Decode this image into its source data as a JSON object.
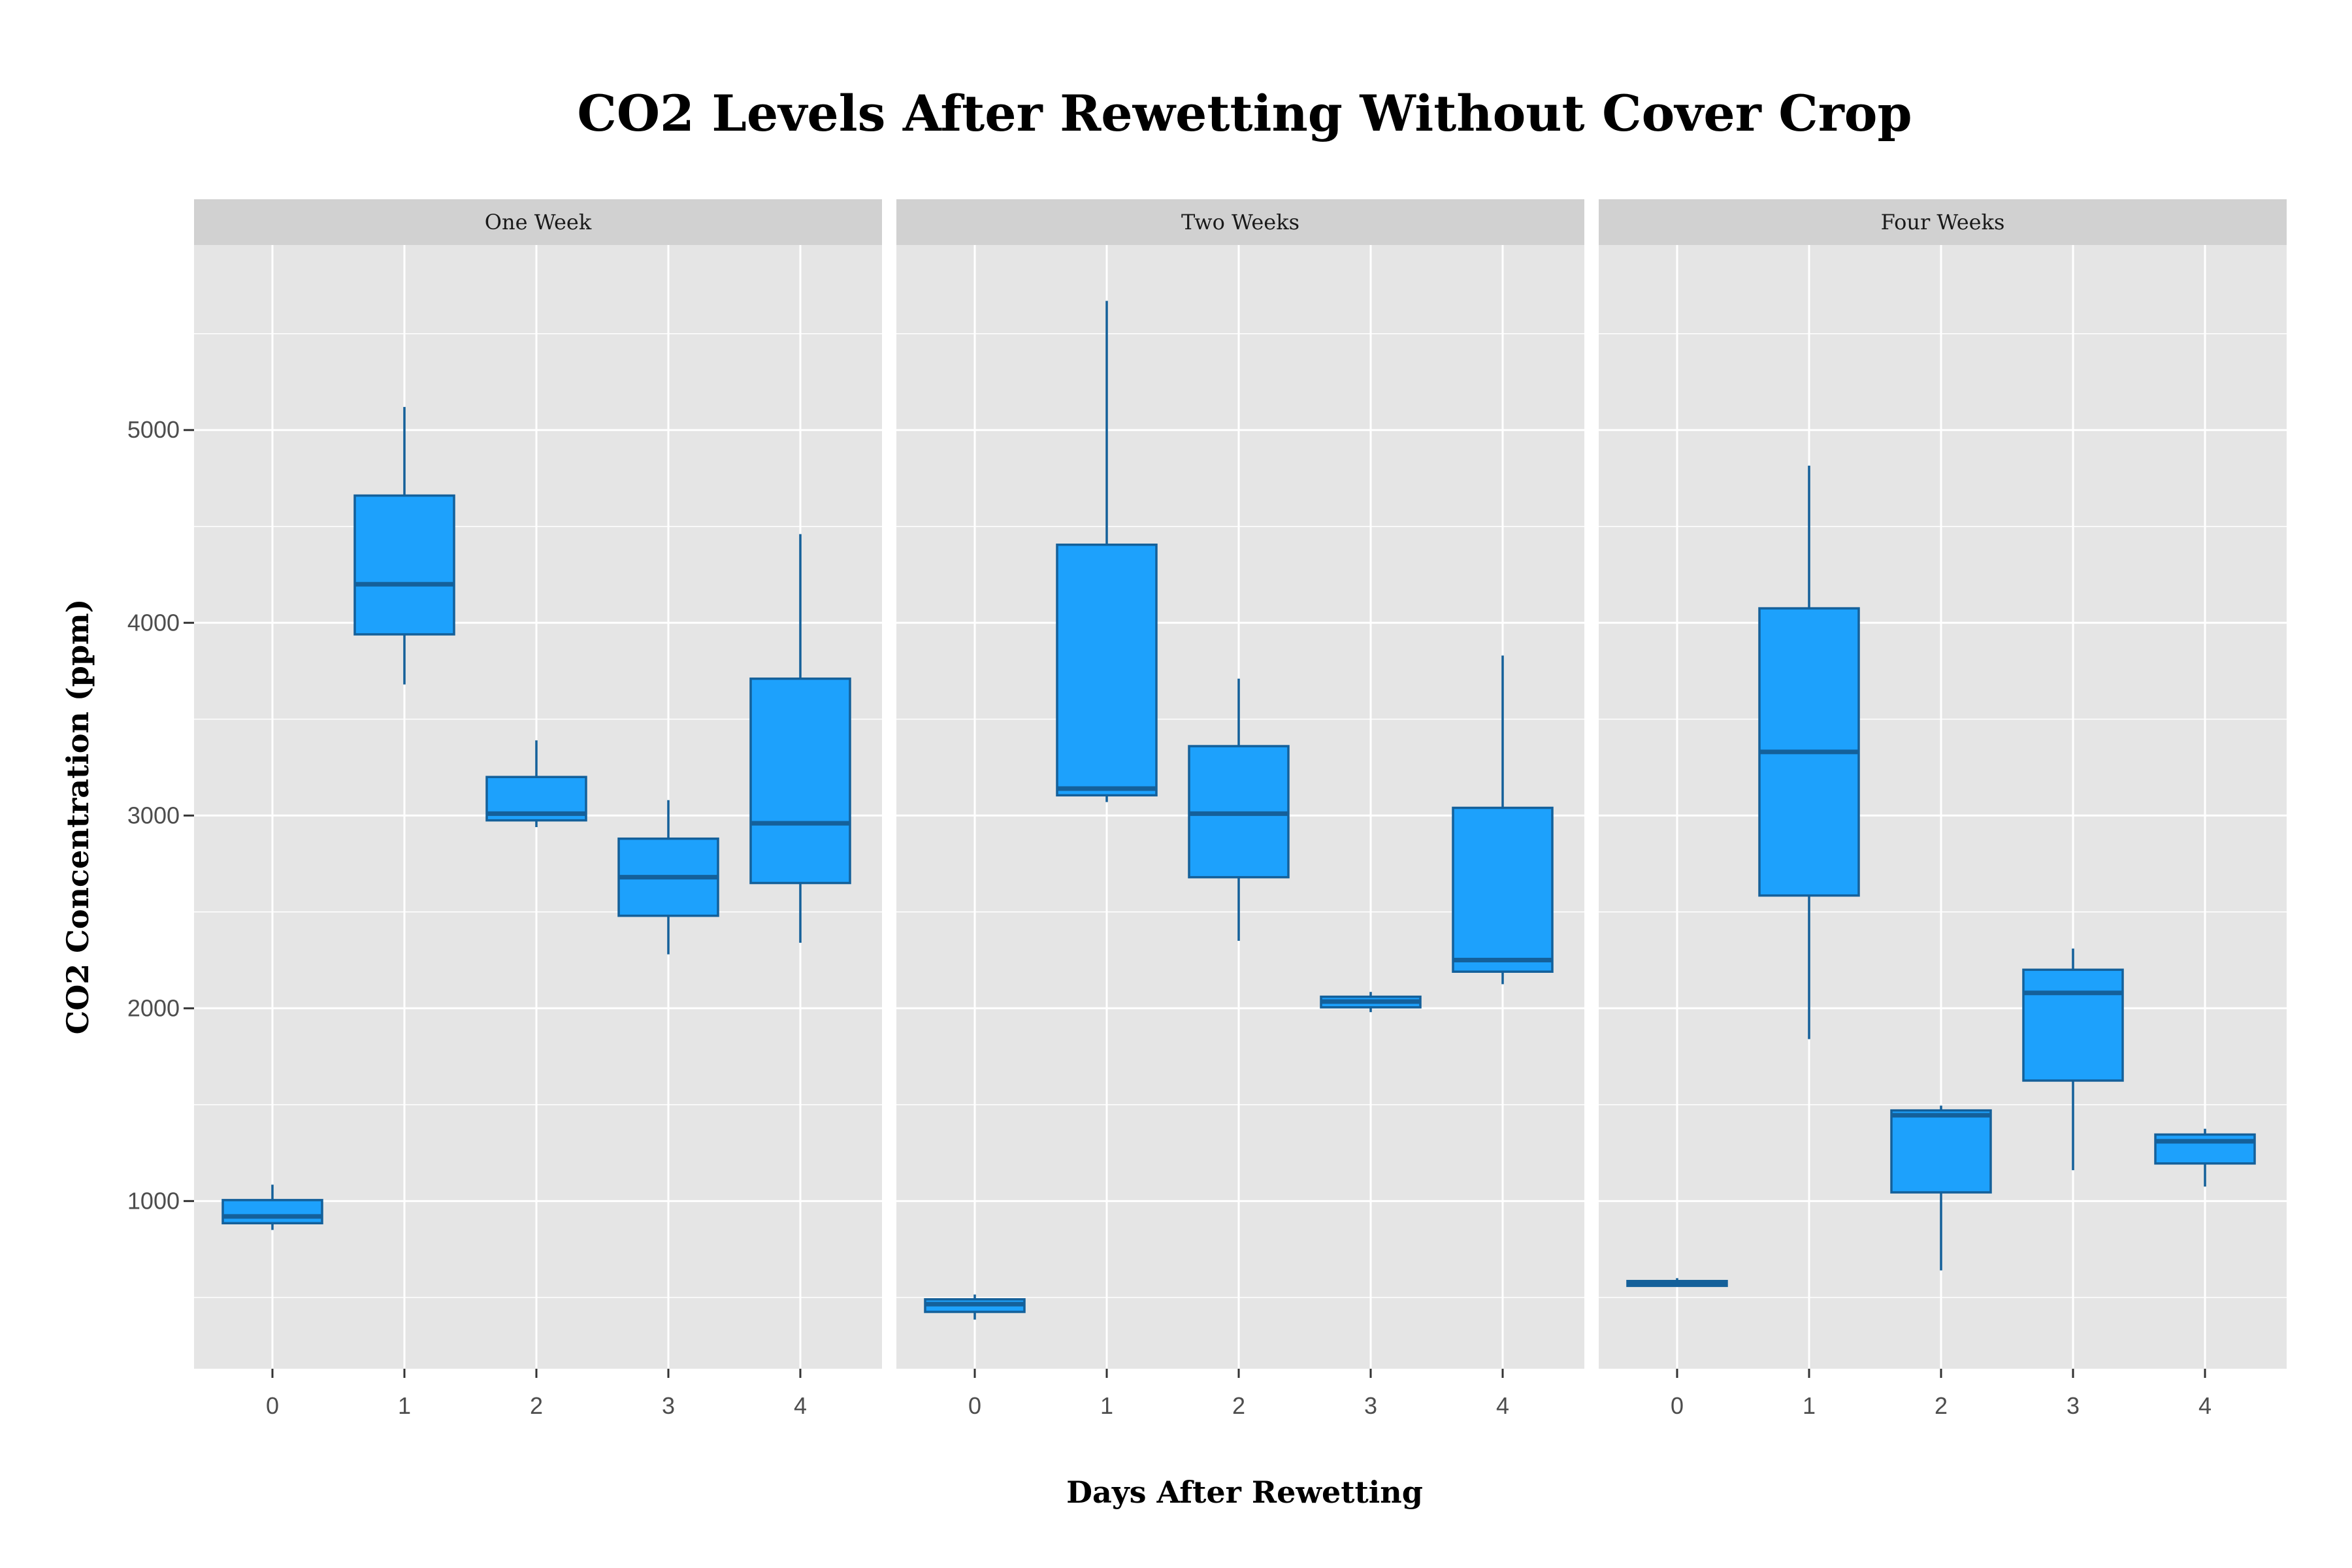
{
  "chart_data": {
    "type": "boxplot",
    "title": "CO2 Levels After Rewetting Without Cover Crop",
    "xlabel": "Days After Rewetting",
    "ylabel": "CO2 Concentration (ppm)",
    "ylim": [
      130,
      5960
    ],
    "yticks": [
      1000,
      2000,
      3000,
      4000,
      5000
    ],
    "categories": [
      "0",
      "1",
      "2",
      "3",
      "4"
    ],
    "grid": true,
    "colors": {
      "box_fill": "#1da1fc",
      "box_line": "#14609a",
      "panel_bg": "#e5e5e5",
      "strip_bg": "#d1d1d1",
      "grid": "#ffffff"
    },
    "facets": [
      {
        "label": "One Week",
        "boxes": [
          {
            "x": "0",
            "min": 850,
            "q1": 885,
            "median": 920,
            "q3": 1005,
            "max": 1085
          },
          {
            "x": "1",
            "min": 3680,
            "q1": 3940,
            "median": 4200,
            "q3": 4660,
            "max": 5120
          },
          {
            "x": "2",
            "min": 2940,
            "q1": 2975,
            "median": 3010,
            "q3": 3200,
            "max": 3390
          },
          {
            "x": "3",
            "min": 2280,
            "q1": 2480,
            "median": 2680,
            "q3": 2880,
            "max": 3080
          },
          {
            "x": "4",
            "min": 2340,
            "q1": 2650,
            "median": 2960,
            "q3": 3710,
            "max": 4460
          }
        ]
      },
      {
        "label": "Two Weeks",
        "boxes": [
          {
            "x": "0",
            "min": 385,
            "q1": 425,
            "median": 465,
            "q3": 490,
            "max": 515
          },
          {
            "x": "1",
            "min": 3070,
            "q1": 3105,
            "median": 3140,
            "q3": 4405,
            "max": 5670
          },
          {
            "x": "2",
            "min": 2350,
            "q1": 2680,
            "median": 3010,
            "q3": 3360,
            "max": 3710
          },
          {
            "x": "3",
            "min": 1980,
            "q1": 2005,
            "median": 2035,
            "q3": 2060,
            "max": 2085
          },
          {
            "x": "4",
            "min": 2125,
            "q1": 2190,
            "median": 2250,
            "q3": 3040,
            "max": 3830
          }
        ]
      },
      {
        "label": "Four Weeks",
        "boxes": [
          {
            "x": "0",
            "min": 555,
            "q1": 560,
            "median": 570,
            "q3": 585,
            "max": 600
          },
          {
            "x": "1",
            "min": 1840,
            "q1": 2585,
            "median": 3330,
            "q3": 4075,
            "max": 4815
          },
          {
            "x": "2",
            "min": 640,
            "q1": 1045,
            "median": 1445,
            "q3": 1470,
            "max": 1495
          },
          {
            "x": "3",
            "min": 1160,
            "q1": 1625,
            "median": 2080,
            "q3": 2200,
            "max": 2310
          },
          {
            "x": "4",
            "min": 1075,
            "q1": 1195,
            "median": 1310,
            "q3": 1345,
            "max": 1375
          }
        ]
      }
    ]
  }
}
